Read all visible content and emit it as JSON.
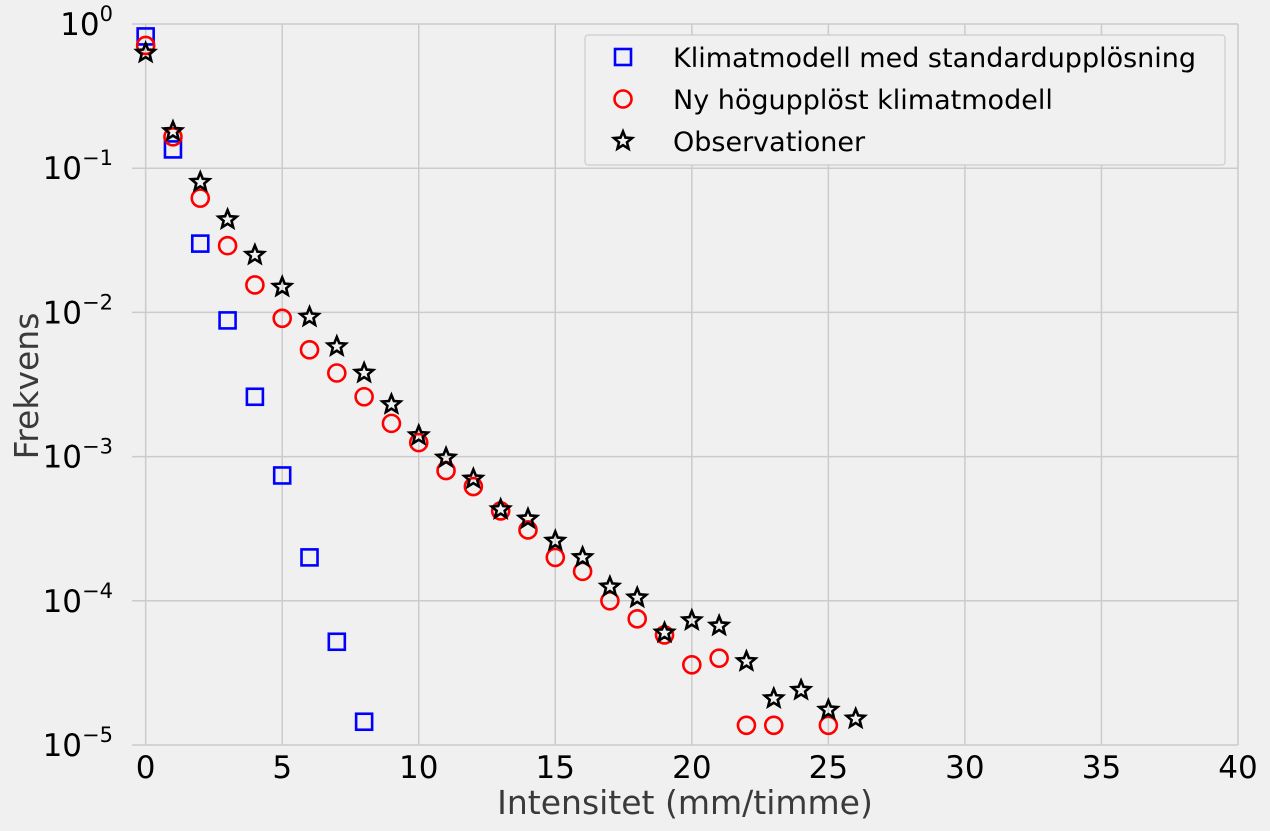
{
  "chart_data": {
    "type": "scatter",
    "xlabel": "Intensitet (mm/timme)",
    "ylabel": "Frekvens",
    "xlim": [
      -0.5,
      40
    ],
    "ylim": [
      1e-05,
      1
    ],
    "yscale": "log",
    "grid": true,
    "legend_position": "top-right",
    "x_ticks": [
      0,
      5,
      10,
      15,
      20,
      25,
      30,
      35,
      40
    ],
    "x_tick_labels": [
      "0",
      "5",
      "10",
      "15",
      "20",
      "25",
      "30",
      "35",
      "40"
    ],
    "y_ticks": [
      {
        "value": 1,
        "base": "10",
        "exp": "0"
      },
      {
        "value": 0.1,
        "base": "10",
        "exp": "−1"
      },
      {
        "value": 0.01,
        "base": "10",
        "exp": "−2"
      },
      {
        "value": 0.001,
        "base": "10",
        "exp": "−3"
      },
      {
        "value": 0.0001,
        "base": "10",
        "exp": "−4"
      },
      {
        "value": 1e-05,
        "base": "10",
        "exp": "−5"
      }
    ],
    "series": [
      {
        "name": "Klimatmodell med standardupplösning",
        "marker": "square",
        "color": "#0000ff",
        "x": [
          0,
          1,
          2,
          3,
          4,
          5,
          6,
          7,
          8
        ],
        "y": [
          0.82,
          0.135,
          0.03,
          0.0088,
          0.0026,
          0.00074,
          0.0002,
          5.2e-05,
          1.45e-05
        ]
      },
      {
        "name": "Ny högupplöst klimatmodell",
        "marker": "circle",
        "color": "#ff0000",
        "x": [
          0,
          1,
          2,
          3,
          4,
          5,
          6,
          7,
          8,
          9,
          10,
          11,
          12,
          13,
          14,
          15,
          16,
          17,
          18,
          19,
          20,
          21,
          22,
          23,
          25
        ],
        "y": [
          0.71,
          0.165,
          0.062,
          0.029,
          0.0155,
          0.0091,
          0.0055,
          0.0038,
          0.0026,
          0.0017,
          0.00125,
          0.0008,
          0.00062,
          0.00042,
          0.00031,
          0.0002,
          0.00016,
          0.0001,
          7.5e-05,
          5.8e-05,
          3.6e-05,
          4e-05,
          1.37e-05,
          1.37e-05,
          1.37e-05
        ]
      },
      {
        "name": "Observationer",
        "marker": "star",
        "color": "#000000",
        "x": [
          0,
          1,
          2,
          3,
          4,
          5,
          6,
          7,
          8,
          9,
          10,
          11,
          12,
          13,
          14,
          15,
          16,
          17,
          18,
          19,
          20,
          21,
          22,
          23,
          24,
          25,
          26
        ],
        "y": [
          0.63,
          0.18,
          0.08,
          0.044,
          0.025,
          0.015,
          0.0093,
          0.0058,
          0.0038,
          0.0023,
          0.0014,
          0.00098,
          0.0007,
          0.00043,
          0.00037,
          0.00026,
          0.0002,
          0.000125,
          0.000105,
          6e-05,
          7.3e-05,
          6.7e-05,
          3.8e-05,
          2.1e-05,
          2.4e-05,
          1.75e-05,
          1.52e-05
        ]
      }
    ]
  }
}
